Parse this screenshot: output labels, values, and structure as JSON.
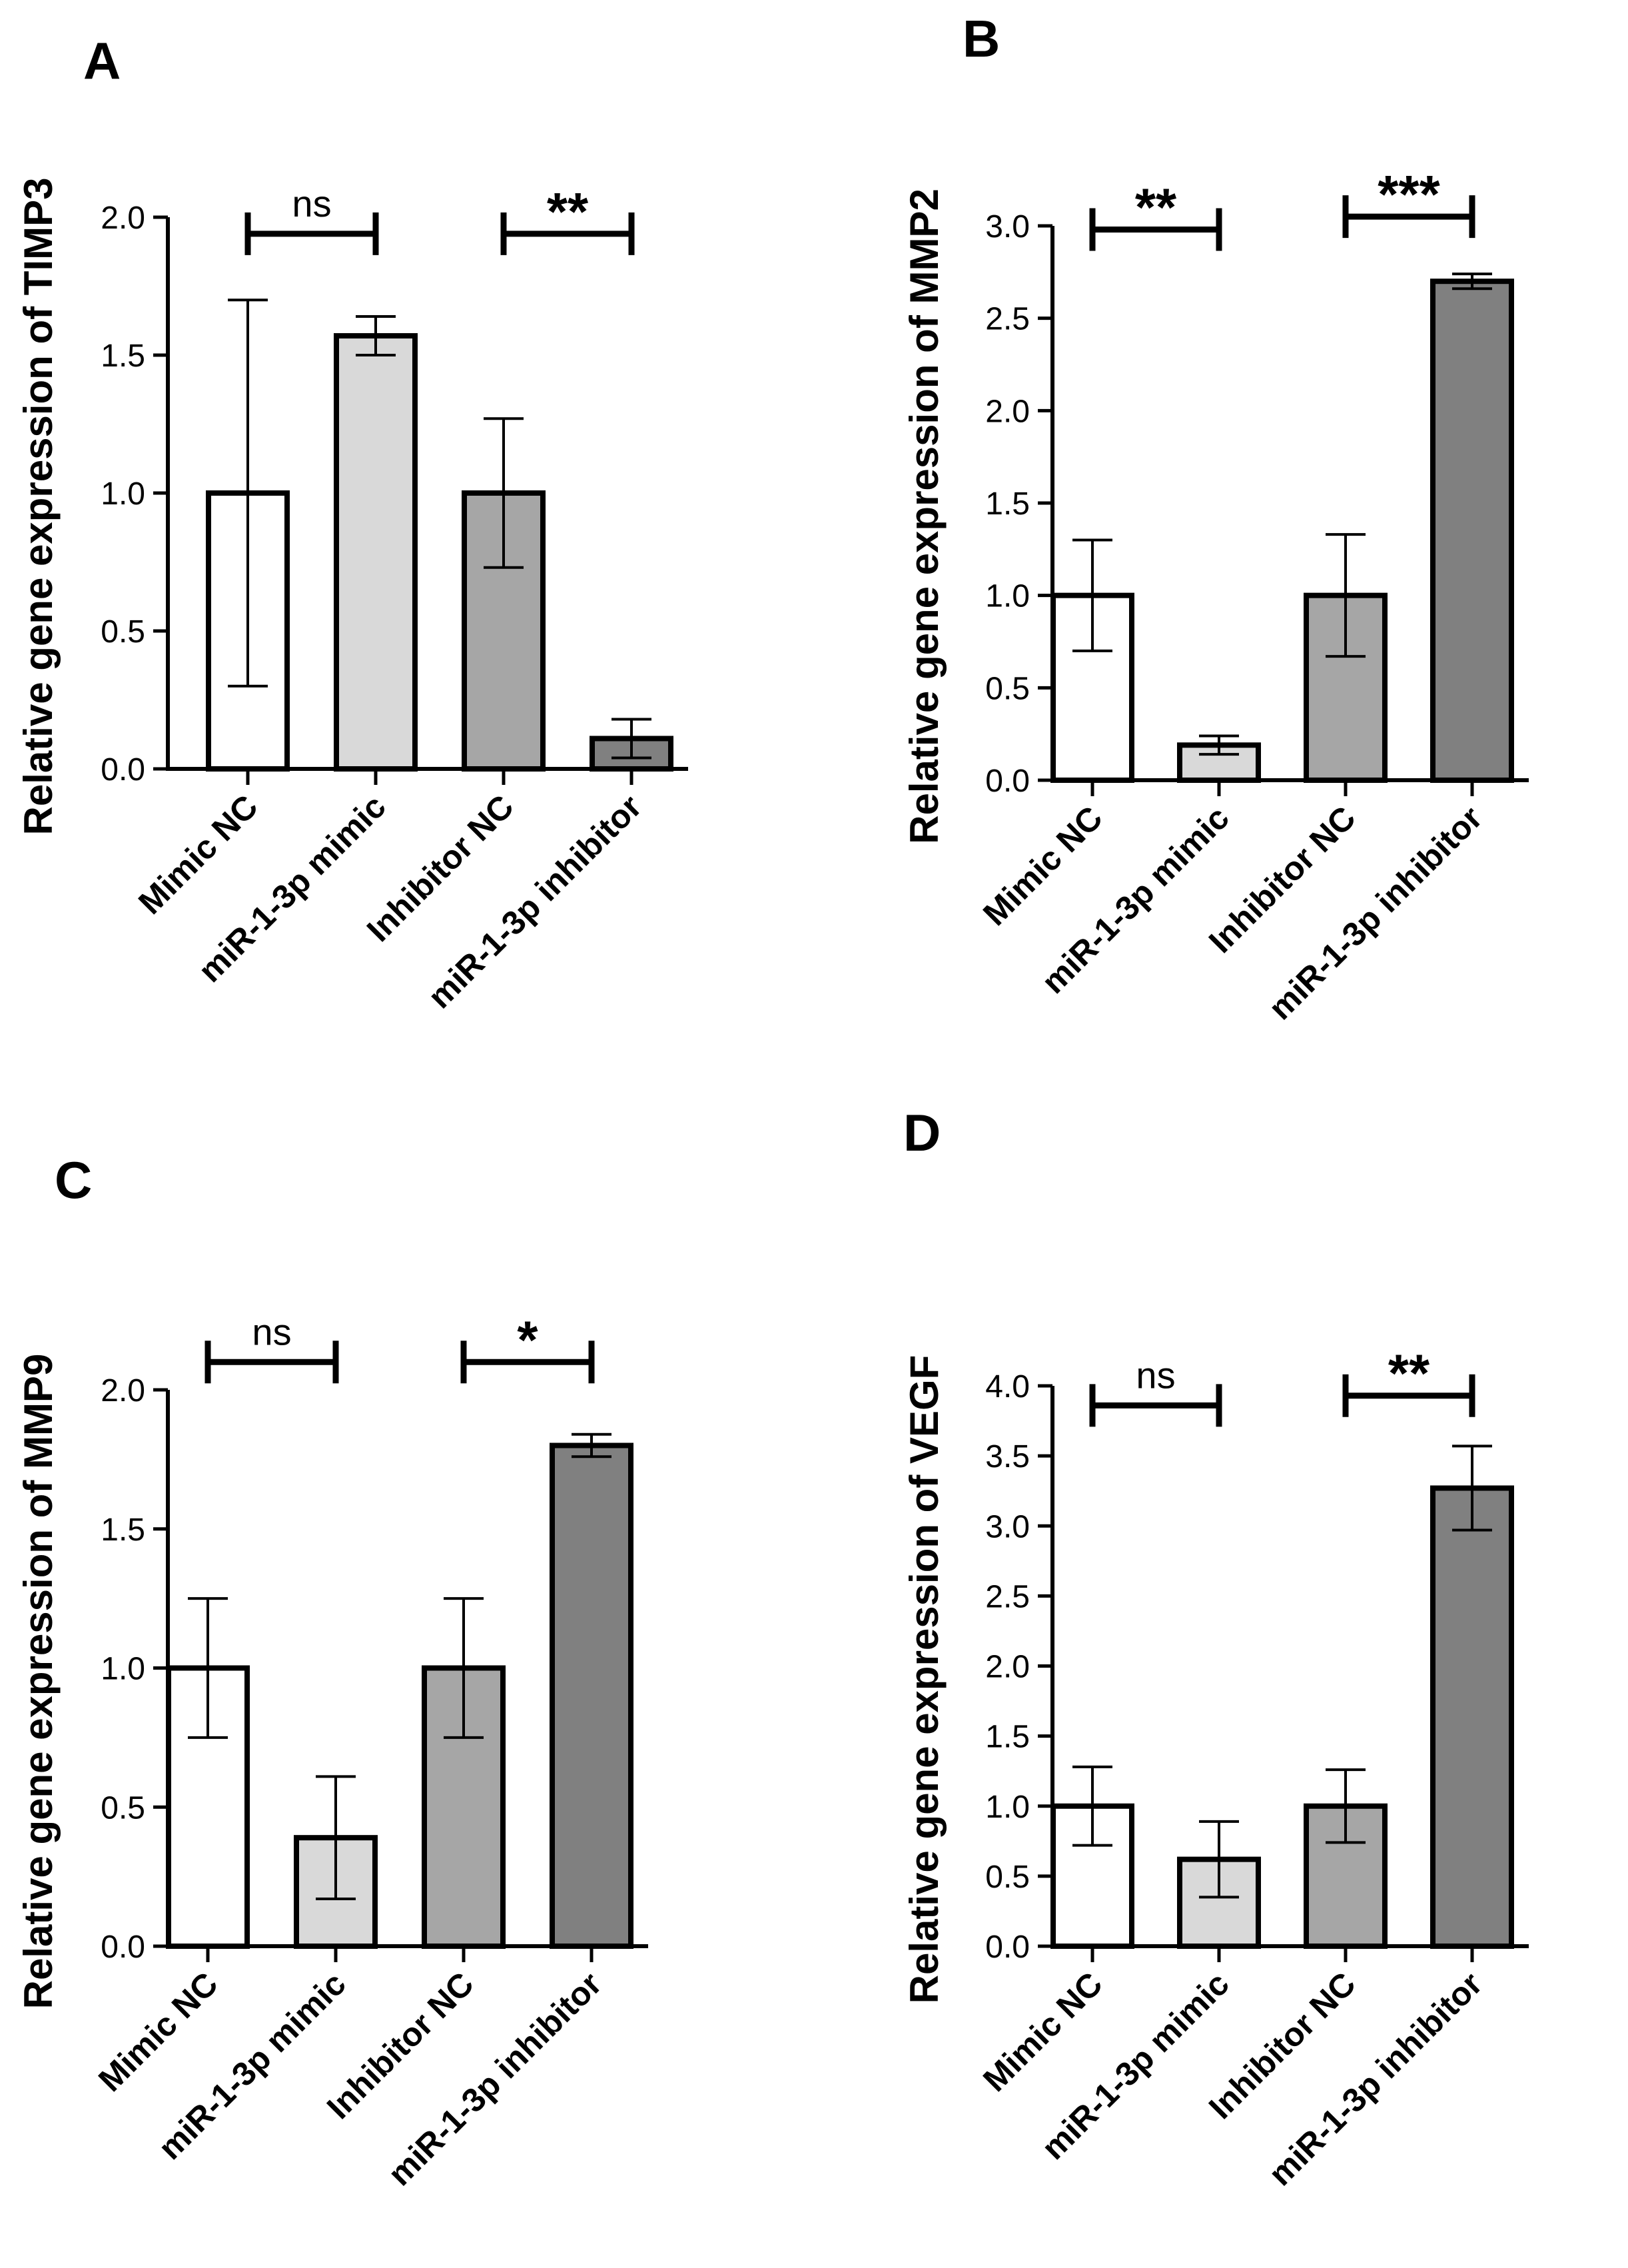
{
  "chart_data": [
    {
      "panel": "A",
      "type": "bar",
      "ylabel": "Relative gene expression of TIMP3",
      "categories": [
        "Mimic NC",
        "miR-1-3p mimic",
        "Inhibitor NC",
        "miR-1-3p inhibitor"
      ],
      "values": [
        1.0,
        1.57,
        1.0,
        0.11
      ],
      "errors": [
        0.7,
        0.07,
        0.27,
        0.07
      ],
      "colors": [
        "#ffffff",
        "#d9d9d9",
        "#a6a6a6",
        "#808080"
      ],
      "ylim": [
        0,
        2.0
      ],
      "yticks": [
        "0.0",
        "0.5",
        "1.0",
        "1.5",
        "2.0"
      ],
      "significance": [
        {
          "from": 0,
          "to": 1,
          "label": "ns",
          "y": 1.94
        },
        {
          "from": 2,
          "to": 3,
          "label": "**",
          "y": 1.94
        }
      ]
    },
    {
      "panel": "B",
      "type": "bar",
      "ylabel": "Relative gene expression of MMP2",
      "categories": [
        "Mimic NC",
        "miR-1-3p mimic",
        "Inhibitor NC",
        "miR-1-3p inhibitor"
      ],
      "values": [
        1.0,
        0.19,
        1.0,
        2.7
      ],
      "errors": [
        0.3,
        0.05,
        0.33,
        0.04
      ],
      "colors": [
        "#ffffff",
        "#d9d9d9",
        "#a6a6a6",
        "#808080"
      ],
      "ylim": [
        0,
        3.0
      ],
      "yticks": [
        "0.0",
        "0.5",
        "1.0",
        "1.5",
        "2.0",
        "2.5",
        "3.0"
      ],
      "significance": [
        {
          "from": 0,
          "to": 1,
          "label": "**",
          "y": 2.98
        },
        {
          "from": 2,
          "to": 3,
          "label": "***",
          "y": 3.05
        }
      ]
    },
    {
      "panel": "C",
      "type": "bar",
      "ylabel": "Relative gene expression of MMP9",
      "categories": [
        "Mimic NC",
        "miR-1-3p mimic",
        "Inhibitor NC",
        "miR-1-3p inhibitor"
      ],
      "values": [
        1.0,
        0.39,
        1.0,
        1.8
      ],
      "errors": [
        0.25,
        0.22,
        0.25,
        0.04
      ],
      "colors": [
        "#ffffff",
        "#d9d9d9",
        "#a6a6a6",
        "#808080"
      ],
      "ylim": [
        0,
        2.0
      ],
      "yticks": [
        "0.0",
        "0.5",
        "1.0",
        "1.5",
        "2.0"
      ],
      "significance": [
        {
          "from": 0,
          "to": 1,
          "label": "ns",
          "y": 2.1
        },
        {
          "from": 2,
          "to": 3,
          "label": "*",
          "y": 2.1
        }
      ]
    },
    {
      "panel": "D",
      "type": "bar",
      "ylabel": "Relative gene expression of VEGF",
      "categories": [
        "Mimic NC",
        "miR-1-3p mimic",
        "Inhibitor NC",
        "miR-1-3p inhibitor"
      ],
      "values": [
        1.0,
        0.62,
        1.0,
        3.27
      ],
      "errors": [
        0.28,
        0.27,
        0.26,
        0.3
      ],
      "colors": [
        "#ffffff",
        "#d9d9d9",
        "#a6a6a6",
        "#808080"
      ],
      "ylim": [
        0,
        4.0
      ],
      "yticks": [
        "0.0",
        "0.5",
        "1.0",
        "1.5",
        "2.0",
        "2.5",
        "3.0",
        "3.5",
        "4.0"
      ],
      "significance": [
        {
          "from": 0,
          "to": 1,
          "label": "ns",
          "y": 3.86
        },
        {
          "from": 2,
          "to": 3,
          "label": "**",
          "y": 3.93
        }
      ]
    }
  ]
}
